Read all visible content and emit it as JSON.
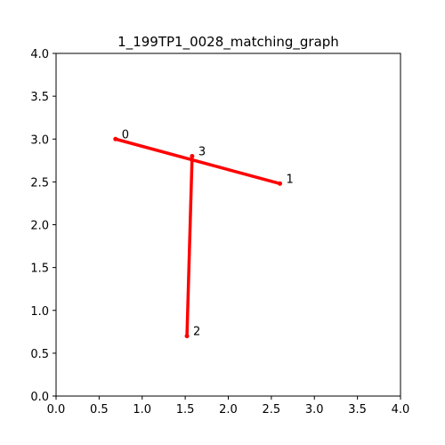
{
  "chart_data": {
    "type": "graph",
    "title": "1_199TP1_0028_matching_graph",
    "xlim": [
      0,
      4
    ],
    "ylim": [
      0,
      4
    ],
    "xticks": [
      "0.0",
      "0.5",
      "1.0",
      "1.5",
      "2.0",
      "2.5",
      "3.0",
      "3.5",
      "4.0"
    ],
    "yticks": [
      "0.0",
      "0.5",
      "1.0",
      "1.5",
      "2.0",
      "2.5",
      "3.0",
      "3.5",
      "4.0"
    ],
    "nodes": [
      {
        "id": "0",
        "x": 0.69,
        "y": 3.0
      },
      {
        "id": "1",
        "x": 2.6,
        "y": 2.48
      },
      {
        "id": "2",
        "x": 1.52,
        "y": 0.7
      },
      {
        "id": "3",
        "x": 1.58,
        "y": 2.8
      }
    ],
    "edges": [
      {
        "from": "0",
        "to": "1"
      },
      {
        "from": "3",
        "to": "2"
      }
    ],
    "edge_color": "#ff0000",
    "grid": false
  }
}
